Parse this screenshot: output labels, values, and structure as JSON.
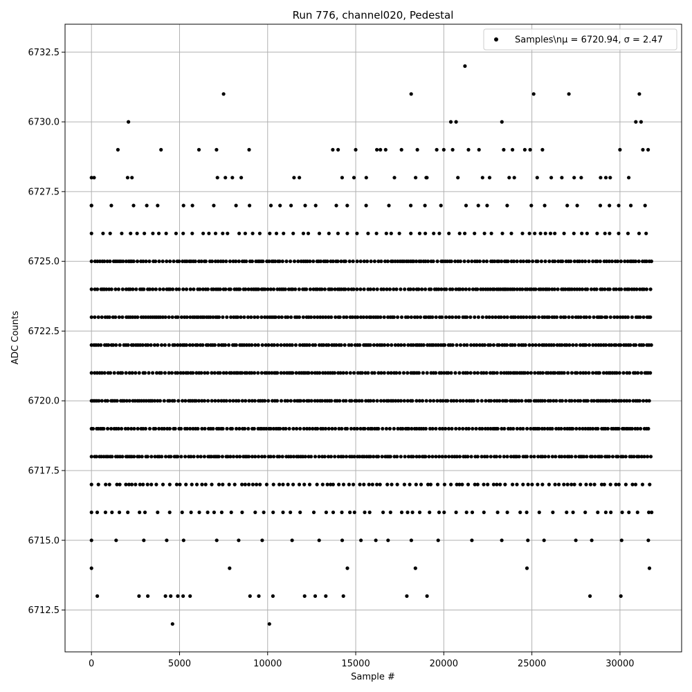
{
  "chart_data": {
    "type": "scatter",
    "title": "Run 776, channel020, Pedestal",
    "xlabel": "Sample #",
    "ylabel": "ADC Counts",
    "xlim": [
      -1500,
      33500
    ],
    "ylim": [
      6711.0,
      6733.5
    ],
    "xticks": [
      0,
      5000,
      10000,
      15000,
      20000,
      25000,
      30000
    ],
    "xtick_labels": [
      "0",
      "5000",
      "10000",
      "15000",
      "20000",
      "25000",
      "30000"
    ],
    "yticks": [
      6712.5,
      6715.0,
      6717.5,
      6720.0,
      6722.5,
      6725.0,
      6727.5,
      6730.0,
      6732.5
    ],
    "ytick_labels": [
      "6712.5",
      "6715.0",
      "6717.5",
      "6720.0",
      "6722.5",
      "6725.0",
      "6727.5",
      "6730.0",
      "6732.5"
    ],
    "grid": true,
    "legend_position": "top-right",
    "marker_color": "#000000",
    "x_range_of_samples": [
      0,
      31800
    ],
    "series": [
      {
        "name": "Samples\\n$\\mu$ = 6720.94, $\\sigma$ = 2.47",
        "legend_label": "Samples\\nμ = 6720.94, σ = 2.47",
        "mean": 6720.94,
        "sigma": 2.47,
        "level_density": {
          "6718": 1.0,
          "6719": 1.0,
          "6720": 1.0,
          "6721": 1.0,
          "6722": 1.0,
          "6723": 1.0,
          "6724": 1.0,
          "6725": 1.0,
          "6717": 0.55,
          "6716": 0.3,
          "6726": 0.35,
          "6715": 0.12,
          "6727": 0.16,
          "6714": 0.03,
          "6728": 0.03
        },
        "points": [
          [
            0,
            6727
          ],
          [
            150,
            6728
          ],
          [
            330,
            6713
          ],
          [
            1500,
            6729
          ],
          [
            2100,
            6730
          ],
          [
            2050,
            6728
          ],
          [
            2300,
            6728
          ],
          [
            2700,
            6713
          ],
          [
            3200,
            6713
          ],
          [
            3950,
            6729
          ],
          [
            4200,
            6713
          ],
          [
            4500,
            6713
          ],
          [
            4600,
            6712
          ],
          [
            4900,
            6713
          ],
          [
            5200,
            6713
          ],
          [
            5600,
            6713
          ],
          [
            6100,
            6729
          ],
          [
            7100,
            6729
          ],
          [
            7500,
            6731
          ],
          [
            7600,
            6728
          ],
          [
            8000,
            6728
          ],
          [
            8500,
            6728
          ],
          [
            8950,
            6729
          ],
          [
            9000,
            6713
          ],
          [
            9500,
            6713
          ],
          [
            10100,
            6712
          ],
          [
            10300,
            6713
          ],
          [
            11500,
            6728
          ],
          [
            11800,
            6728
          ],
          [
            12100,
            6713
          ],
          [
            12700,
            6713
          ],
          [
            13300,
            6713
          ],
          [
            13700,
            6729
          ],
          [
            14000,
            6729
          ],
          [
            14300,
            6713
          ],
          [
            14900,
            6728
          ],
          [
            15000,
            6729
          ],
          [
            15600,
            6728
          ],
          [
            16200,
            6729
          ],
          [
            16400,
            6729
          ],
          [
            16700,
            6729
          ],
          [
            17200,
            6728
          ],
          [
            17600,
            6729
          ],
          [
            17900,
            6713
          ],
          [
            18150,
            6731
          ],
          [
            18400,
            6728
          ],
          [
            18500,
            6729
          ],
          [
            19000,
            6728
          ],
          [
            19050,
            6713
          ],
          [
            19600,
            6729
          ],
          [
            20000,
            6729
          ],
          [
            20400,
            6730
          ],
          [
            20700,
            6730
          ],
          [
            20500,
            6729
          ],
          [
            20800,
            6728
          ],
          [
            21200,
            6732
          ],
          [
            21400,
            6729
          ],
          [
            22000,
            6729
          ],
          [
            22200,
            6728
          ],
          [
            22600,
            6728
          ],
          [
            23300,
            6730
          ],
          [
            23400,
            6729
          ],
          [
            23900,
            6729
          ],
          [
            24000,
            6728
          ],
          [
            24600,
            6729
          ],
          [
            24900,
            6729
          ],
          [
            25100,
            6731
          ],
          [
            25300,
            6728
          ],
          [
            25600,
            6729
          ],
          [
            26100,
            6728
          ],
          [
            26700,
            6728
          ],
          [
            27100,
            6731
          ],
          [
            27400,
            6728
          ],
          [
            27800,
            6728
          ],
          [
            28300,
            6713
          ],
          [
            28900,
            6728
          ],
          [
            29200,
            6728
          ],
          [
            30000,
            6729
          ],
          [
            30050,
            6713
          ],
          [
            30500,
            6728
          ],
          [
            30900,
            6730
          ],
          [
            31100,
            6731
          ],
          [
            31200,
            6730
          ],
          [
            31300,
            6729
          ],
          [
            31600,
            6729
          ],
          [
            31800,
            6716
          ]
        ]
      }
    ]
  }
}
